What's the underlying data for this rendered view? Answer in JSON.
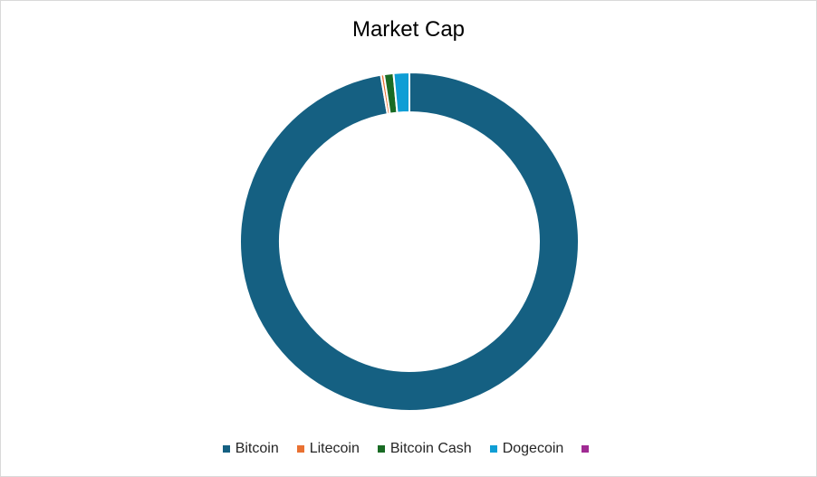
{
  "chart_data": {
    "type": "pie",
    "style": "donut",
    "title": "Market Cap",
    "categories": [
      "Bitcoin",
      "Litecoin",
      "Bitcoin Cash",
      "Dogecoin",
      ""
    ],
    "values": [
      97.3,
      0.3,
      0.9,
      1.5,
      0.0
    ],
    "colors": [
      "#156082",
      "#e97132",
      "#196b24",
      "#0f9ed5",
      "#a02b93"
    ],
    "legend_position": "bottom",
    "grid": false
  }
}
